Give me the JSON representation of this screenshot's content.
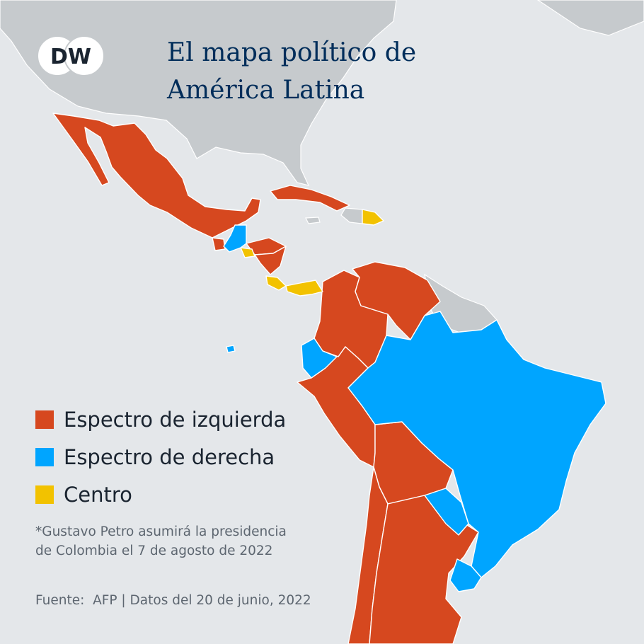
{
  "brand": {
    "logo_text": "DW",
    "logo_icon": "dw-logo"
  },
  "title_lines": [
    "El mapa político de",
    "América Latina"
  ],
  "legend": [
    {
      "label": "Espectro de izquierda",
      "color": "#d6481f"
    },
    {
      "label": "Espectro de derecha",
      "color": "#00a5ff"
    },
    {
      "label": "Centro",
      "color": "#f2c200"
    }
  ],
  "colors": {
    "background": "#e4e7ea",
    "land_other": "#c6cacd",
    "borders": "#ffffff",
    "title": "#002d5a"
  },
  "note_lines": [
    "*Gustavo Petro asumirá la presidencia",
    "de Colombia el 7 de agosto de 2022"
  ],
  "source": "Fuente:  AFP | Datos del 20 de junio, 2022"
}
